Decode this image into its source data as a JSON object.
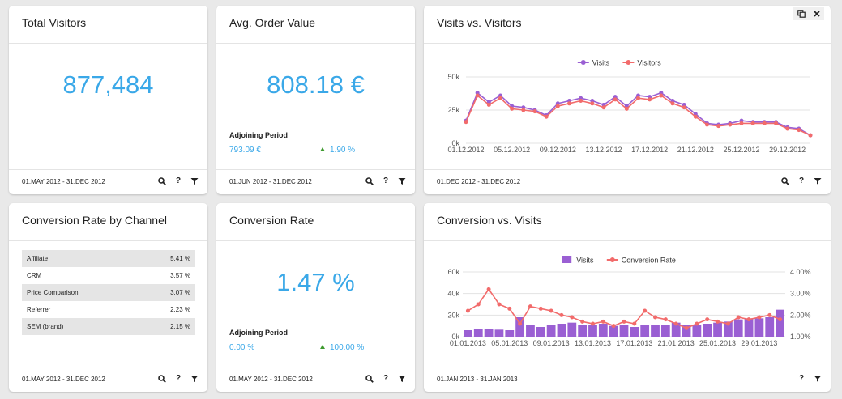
{
  "cards": {
    "total_visitors": {
      "title": "Total Visitors",
      "value": "877,484",
      "range": "01.MAY 2012 - 31.DEC 2012"
    },
    "avg_order": {
      "title": "Avg. Order Value",
      "value": "808.18 €",
      "adj_title": "Adjoining Period",
      "adj_value": "793.09 €",
      "adj_change": "1.90 %",
      "range": "01.JUN 2012 - 31.DEC 2012"
    },
    "visits_visitors": {
      "title": "Visits vs. Visitors",
      "range": "01.DEC 2012 - 31.DEC 2012"
    },
    "conv_channel": {
      "title": "Conversion Rate by Channel",
      "rows": [
        {
          "label": "Affiliate",
          "value": "5.41 %"
        },
        {
          "label": "CRM",
          "value": "3.57 %"
        },
        {
          "label": "Price Comparison",
          "value": "3.07 %"
        },
        {
          "label": "Referrer",
          "value": "2.23 %"
        },
        {
          "label": "SEM (brand)",
          "value": "2.15 %"
        }
      ],
      "range": "01.MAY 2012 - 31.DEC 2012"
    },
    "conv_rate": {
      "title": "Conversion Rate",
      "value": "1.47 %",
      "adj_title": "Adjoining Period",
      "adj_value": "0.00 %",
      "adj_change": "100.00 %",
      "range": "01.MAY 2012 - 31.DEC 2012"
    },
    "conv_visits": {
      "title": "Conversion vs. Visits",
      "range": "01.JAN 2013 - 31.JAN 2013"
    }
  },
  "icons": [
    "search-icon",
    "help-icon",
    "filter-icon",
    "copy-icon",
    "close-icon"
  ],
  "colors": {
    "kpi": "#3aa8e8",
    "visits": "#9a5fd3",
    "visitors": "#f26b6b",
    "up_arrow": "#3e9a2e"
  },
  "chart_data": [
    {
      "type": "line",
      "title": "Visits vs. Visitors",
      "x": [
        "01.12.2012",
        "02.12.2012",
        "03.12.2012",
        "04.12.2012",
        "05.12.2012",
        "06.12.2012",
        "07.12.2012",
        "08.12.2012",
        "09.12.2012",
        "10.12.2012",
        "11.12.2012",
        "12.12.2012",
        "13.12.2012",
        "14.12.2012",
        "15.12.2012",
        "16.12.2012",
        "17.12.2012",
        "18.12.2012",
        "19.12.2012",
        "20.12.2012",
        "21.12.2012",
        "22.12.2012",
        "23.12.2012",
        "24.12.2012",
        "25.12.2012",
        "26.12.2012",
        "27.12.2012",
        "28.12.2012",
        "29.12.2012",
        "30.12.2012",
        "31.12.2012"
      ],
      "xticks": [
        "01.12.2012",
        "05.12.2012",
        "09.12.2012",
        "13.12.2012",
        "17.12.2012",
        "21.12.2012",
        "25.12.2012",
        "29.12.2012"
      ],
      "yticks": [
        "0k",
        "25k",
        "50k"
      ],
      "ylim": [
        0,
        50000
      ],
      "legend": "top-center",
      "series": [
        {
          "name": "Visits",
          "color": "#9a5fd3",
          "values": [
            17000,
            38000,
            31000,
            36000,
            28000,
            27000,
            25000,
            21000,
            30000,
            32000,
            34000,
            32000,
            29000,
            35000,
            28000,
            36000,
            35000,
            38000,
            32000,
            29000,
            22000,
            15000,
            14000,
            15000,
            17000,
            16000,
            16000,
            16000,
            12000,
            11000,
            6000
          ]
        },
        {
          "name": "Visitors",
          "color": "#f26b6b",
          "values": [
            16000,
            36000,
            29000,
            34000,
            26000,
            25000,
            24000,
            20000,
            28000,
            30000,
            32000,
            30000,
            27000,
            33000,
            26000,
            34000,
            33000,
            36000,
            30000,
            27000,
            20000,
            14000,
            13000,
            14000,
            15000,
            15000,
            15000,
            15000,
            11000,
            10000,
            6000
          ]
        }
      ]
    },
    {
      "type": "bar",
      "title": "Conversion vs. Visits",
      "x": [
        "01.01.2013",
        "02.01.2013",
        "03.01.2013",
        "04.01.2013",
        "05.01.2013",
        "06.01.2013",
        "07.01.2013",
        "08.01.2013",
        "09.01.2013",
        "10.01.2013",
        "11.01.2013",
        "12.01.2013",
        "13.01.2013",
        "14.01.2013",
        "15.01.2013",
        "16.01.2013",
        "17.01.2013",
        "18.01.2013",
        "19.01.2013",
        "20.01.2013",
        "21.01.2013",
        "22.01.2013",
        "23.01.2013",
        "24.01.2013",
        "25.01.2013",
        "26.01.2013",
        "27.01.2013",
        "28.01.2013",
        "29.01.2013",
        "30.01.2013",
        "31.01.2013"
      ],
      "xticks": [
        "01.01.2013",
        "05.01.2013",
        "09.01.2013",
        "13.01.2013",
        "17.01.2013",
        "21.01.2013",
        "25.01.2013",
        "29.01.2013"
      ],
      "yticks_left": [
        "0k",
        "20k",
        "40k",
        "60k"
      ],
      "yticks_right": [
        "1.00%",
        "2.00%",
        "3.00%",
        "4.00%"
      ],
      "ylim": [
        0,
        60000
      ],
      "ylim_right": [
        1.0,
        4.0
      ],
      "legend": "top-center",
      "series": [
        {
          "name": "Visits",
          "kind": "bar",
          "color": "#9a5fd3",
          "values": [
            6000,
            7000,
            7000,
            6500,
            6000,
            18000,
            11000,
            9000,
            11000,
            12000,
            13000,
            11000,
            11000,
            12000,
            10000,
            11000,
            9000,
            11000,
            11000,
            11000,
            13000,
            11000,
            11000,
            12000,
            13000,
            14000,
            16000,
            17000,
            17000,
            18000,
            25000
          ]
        },
        {
          "name": "Conversion Rate",
          "kind": "line",
          "color": "#f26b6b",
          "values": [
            2.2,
            2.5,
            3.2,
            2.5,
            2.3,
            1.6,
            2.4,
            2.3,
            2.2,
            2.0,
            1.9,
            1.7,
            1.6,
            1.7,
            1.5,
            1.7,
            1.6,
            2.2,
            1.9,
            1.8,
            1.6,
            1.4,
            1.6,
            1.8,
            1.7,
            1.6,
            1.9,
            1.8,
            1.9,
            2.0,
            1.8
          ]
        }
      ]
    }
  ]
}
